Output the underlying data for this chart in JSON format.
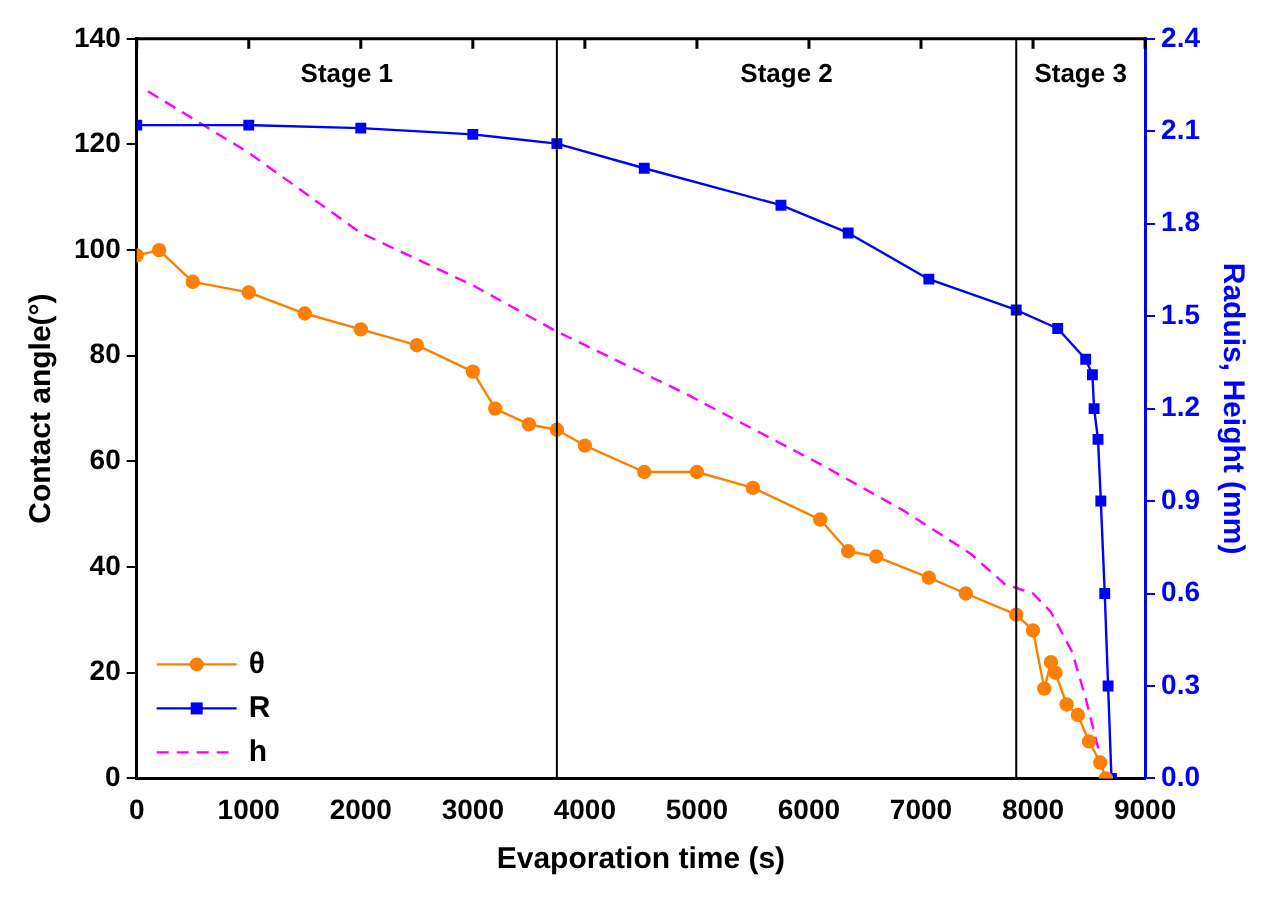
{
  "chart_data": {
    "type": "line",
    "xlabel": "Evaporation time (s)",
    "ylabel": "Contact angle(°)",
    "y2label": "Raduis, Height (mm)",
    "xlim": [
      0,
      9000
    ],
    "xticks": [
      0,
      1000,
      2000,
      3000,
      4000,
      5000,
      6000,
      7000,
      8000,
      9000
    ],
    "ylim": [
      0,
      140
    ],
    "yticks": [
      0,
      20,
      40,
      60,
      80,
      100,
      120,
      140
    ],
    "y2lim": [
      0,
      2.4
    ],
    "y2ticks": [
      {
        "value": 0,
        "label": "0.0"
      },
      0.3,
      0.6,
      0.9,
      1.2,
      1.5,
      1.8,
      2.1,
      2.4
    ],
    "legend": "bottom left",
    "grid": false,
    "series": [
      {
        "name": "θ",
        "color": "#ff8000",
        "marker": "circle",
        "line_style": "solid",
        "x": [
          0,
          200,
          500,
          1000,
          1500,
          2000,
          2500,
          3000,
          3200,
          3500,
          3750,
          4000,
          4530,
          5000,
          5500,
          6100,
          6350,
          6600,
          7070,
          7400,
          7850,
          8000,
          8100,
          8160,
          8200,
          8300,
          8400,
          8500,
          8600,
          8650
        ],
        "values": [
          99,
          100,
          94,
          92,
          88,
          85,
          82,
          77,
          70,
          67,
          66,
          63,
          58,
          58,
          55,
          49,
          43,
          42,
          38,
          35,
          31,
          28,
          17,
          22,
          20,
          14,
          12,
          7,
          3,
          0
        ]
      },
      {
        "name": "R",
        "color": "#0000ff",
        "marker": "square",
        "line_style": "solid",
        "axis": "y2",
        "x": [
          0,
          1000,
          2000,
          3000,
          3750,
          4530,
          5750,
          6350,
          7070,
          7850,
          8220,
          8470,
          8530,
          8545,
          8580,
          8605,
          8640,
          8670,
          8700
        ],
        "values": [
          2.12,
          2.12,
          2.11,
          2.09,
          2.06,
          1.98,
          1.86,
          1.77,
          1.62,
          1.52,
          1.46,
          1.36,
          1.31,
          1.2,
          1.1,
          0.9,
          0.6,
          0.3,
          0
        ]
      },
      {
        "name": "h",
        "color": "#ff00ff",
        "marker": "none",
        "line_style": "dashed",
        "axis": "y2",
        "x": [
          100,
          1000,
          2000,
          3000,
          3750,
          4890,
          6100,
          6840,
          7440,
          7750,
          8000,
          8160,
          8350,
          8470,
          8580,
          8650
        ],
        "values": [
          2.23,
          2.03,
          1.77,
          1.6,
          1.45,
          1.25,
          1.02,
          0.87,
          0.73,
          0.63,
          0.6,
          0.54,
          0.41,
          0.26,
          0.1,
          0
        ]
      }
    ],
    "ref_lines": [
      {
        "axis": "x",
        "value": 3750,
        "color": "#000000"
      },
      {
        "axis": "x",
        "value": 7850,
        "color": "#000000"
      }
    ],
    "annotations": [
      "Stage 1",
      "Stage 2",
      "Stage 3"
    ]
  }
}
